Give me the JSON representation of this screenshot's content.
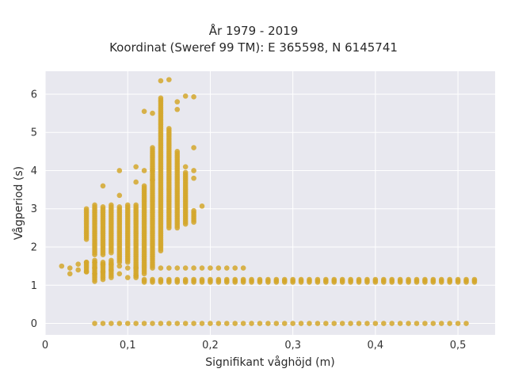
{
  "chart_data": {
    "type": "scatter",
    "title": "År 1979 - 2019",
    "subtitle": "Koordinat (Sweref 99 TM): E 365598, N 6145741",
    "xlabel": "Signifikant våghöjd (m)",
    "ylabel": "Vågperiod (s)",
    "xlim": [
      0,
      0.545
    ],
    "ylim": [
      -0.3,
      6.6
    ],
    "x_ticks": [
      0,
      0.1,
      0.2,
      0.3,
      0.4,
      0.5
    ],
    "x_tick_labels": [
      "0",
      "0,1",
      "0,2",
      "0,3",
      "0,4",
      "0,5"
    ],
    "y_ticks": [
      0,
      1,
      2,
      3,
      4,
      5,
      6
    ],
    "y_tick_labels": [
      "0",
      "1",
      "2",
      "3",
      "4",
      "5",
      "6"
    ],
    "grid": true,
    "background_color": "#e8e8ef",
    "marker_color": "#d4a72c",
    "columns": [
      {
        "x": 0.02,
        "y": [
          1.5
        ]
      },
      {
        "x": 0.03,
        "y": [
          1.3,
          1.45
        ]
      },
      {
        "x": 0.04,
        "y": [
          1.4,
          1.55
        ]
      },
      {
        "x": 0.05,
        "y": [
          1.35,
          1.6
        ]
      },
      {
        "x": 0.06,
        "y": [
          1.3,
          1.45,
          1.6
        ]
      },
      {
        "x": 0.07,
        "y": [
          1.35,
          1.55
        ]
      },
      {
        "x": 0.08,
        "y": [
          1.4,
          1.55
        ]
      },
      {
        "x": 0.09,
        "y": [
          1.3,
          1.5
        ]
      },
      {
        "x": 0.1,
        "y": [
          1.2,
          1.45
        ]
      },
      {
        "x": 0.11,
        "y": [
          1.25,
          1.45
        ]
      },
      {
        "x": 0.13,
        "y": [
          1.45
        ]
      },
      {
        "x": 0.14,
        "y": [
          1.45
        ]
      },
      {
        "x": 0.15,
        "y": [
          1.45
        ]
      },
      {
        "x": 0.16,
        "y": [
          1.45
        ]
      },
      {
        "x": 0.17,
        "y": [
          1.45
        ]
      },
      {
        "x": 0.18,
        "y": [
          1.45
        ]
      },
      {
        "x": 0.19,
        "y": [
          1.45
        ]
      },
      {
        "x": 0.2,
        "y": [
          1.45
        ]
      },
      {
        "x": 0.21,
        "y": [
          1.45
        ]
      },
      {
        "x": 0.22,
        "y": [
          1.45
        ]
      },
      {
        "x": 0.23,
        "y": [
          1.45
        ]
      },
      {
        "x": 0.24,
        "y": [
          1.45
        ]
      },
      {
        "x": 0.07,
        "y": [
          3.6
        ]
      },
      {
        "x": 0.09,
        "y": [
          3.35,
          4.0
        ]
      },
      {
        "x": 0.11,
        "y": [
          3.7,
          4.1
        ]
      },
      {
        "x": 0.12,
        "y": [
          4.0,
          5.55
        ]
      },
      {
        "x": 0.13,
        "y": [
          3.75,
          4.0,
          5.5
        ]
      },
      {
        "x": 0.14,
        "y": [
          6.35
        ]
      },
      {
        "x": 0.15,
        "y": [
          6.38
        ]
      },
      {
        "x": 0.16,
        "y": [
          5.6,
          5.8
        ]
      },
      {
        "x": 0.17,
        "y": [
          5.95,
          4.1
        ]
      },
      {
        "x": 0.18,
        "y": [
          5.93,
          4.6,
          4.0,
          3.8,
          2.65
        ]
      },
      {
        "x": 0.19,
        "y": [
          3.07
        ]
      }
    ],
    "column_ranges": [
      {
        "x": 0.05,
        "y_from": 1.35,
        "y_to": 1.6
      },
      {
        "x": 0.06,
        "y_from": 1.1,
        "y_to": 1.65
      },
      {
        "x": 0.07,
        "y_from": 1.15,
        "y_to": 1.6
      },
      {
        "x": 0.08,
        "y_from": 1.2,
        "y_to": 1.65
      },
      {
        "x": 0.05,
        "y_from": 2.2,
        "y_to": 3.0
      },
      {
        "x": 0.06,
        "y_from": 1.8,
        "y_to": 3.1
      },
      {
        "x": 0.07,
        "y_from": 1.8,
        "y_to": 3.05
      },
      {
        "x": 0.08,
        "y_from": 1.85,
        "y_to": 3.1
      },
      {
        "x": 0.09,
        "y_from": 1.6,
        "y_to": 3.05
      },
      {
        "x": 0.1,
        "y_from": 1.6,
        "y_to": 3.1
      },
      {
        "x": 0.11,
        "y_from": 1.2,
        "y_to": 3.1
      },
      {
        "x": 0.12,
        "y_from": 1.3,
        "y_to": 3.6
      },
      {
        "x": 0.13,
        "y_from": 1.5,
        "y_to": 4.6
      },
      {
        "x": 0.14,
        "y_from": 1.9,
        "y_to": 5.9
      },
      {
        "x": 0.15,
        "y_from": 2.5,
        "y_to": 5.1
      },
      {
        "x": 0.16,
        "y_from": 2.5,
        "y_to": 4.5
      },
      {
        "x": 0.17,
        "y_from": 2.6,
        "y_to": 3.95
      },
      {
        "x": 0.18,
        "y_from": 2.7,
        "y_to": 2.95
      }
    ],
    "band_1_1": {
      "x_from": 0.12,
      "x_to": 0.52,
      "x_step": 0.01,
      "y_values": [
        1.08,
        1.15
      ]
    },
    "band_0": {
      "x_from": 0.06,
      "x_to": 0.51,
      "x_step": 0.01,
      "y": 0
    }
  }
}
